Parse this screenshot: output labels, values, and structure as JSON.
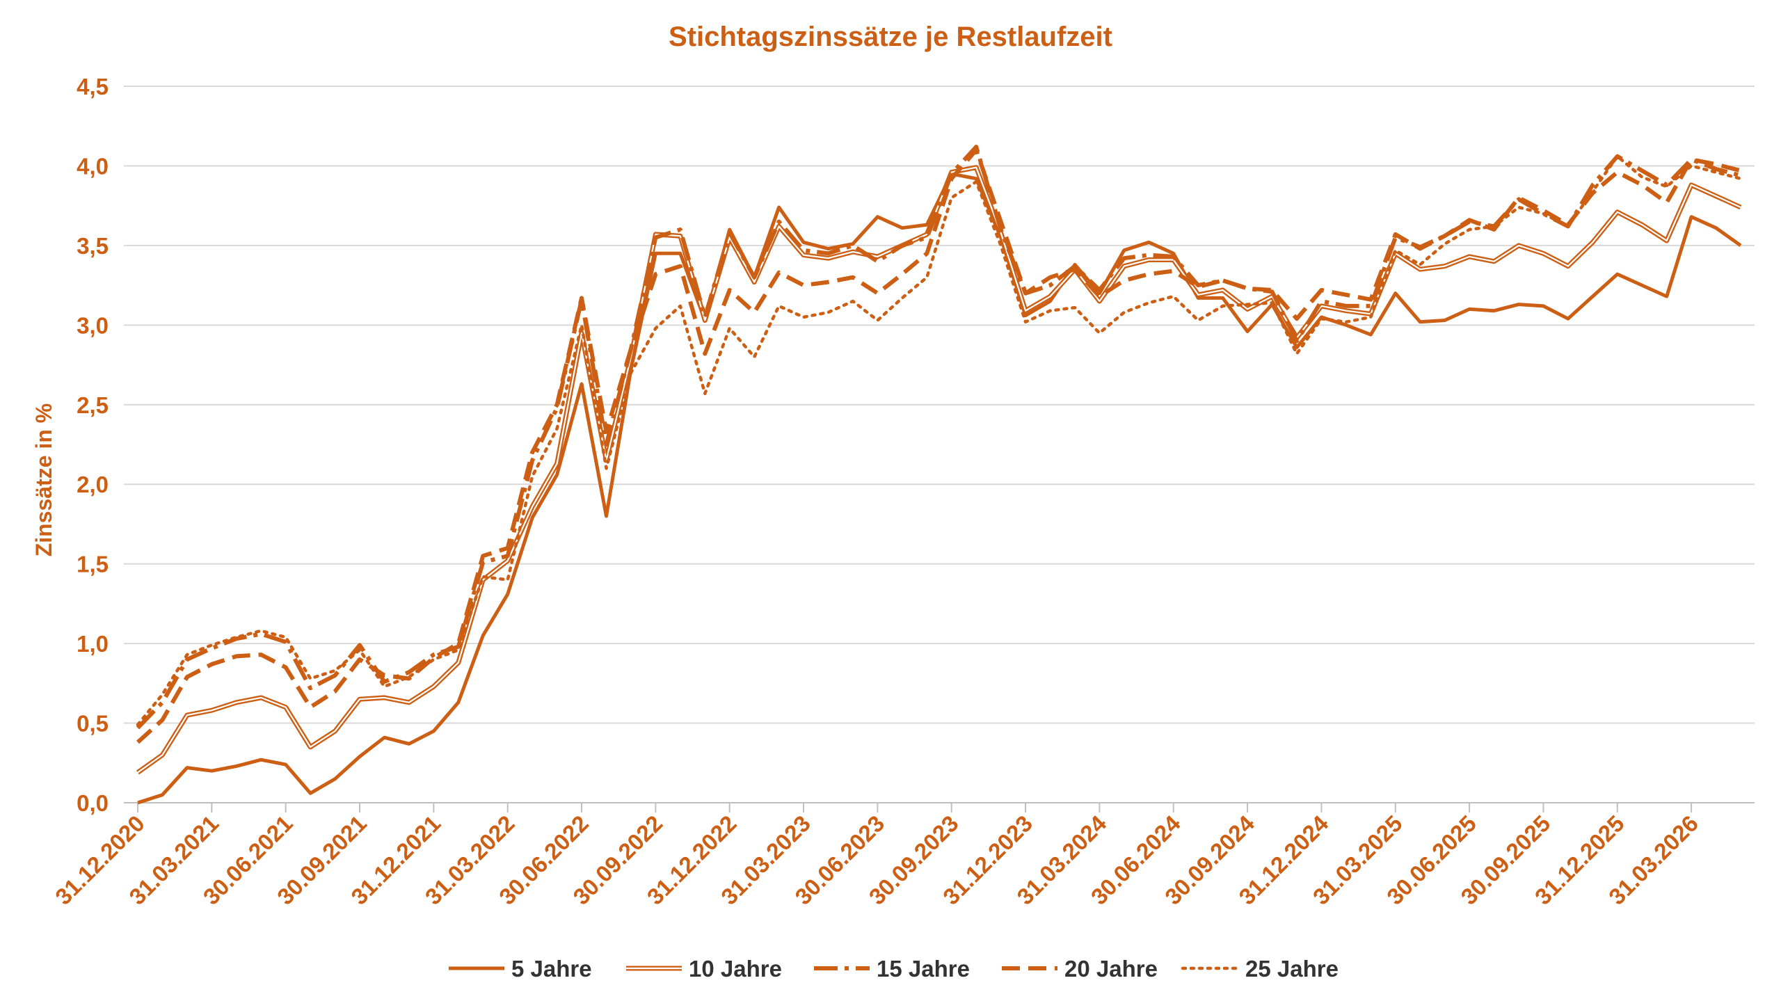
{
  "chart_data": {
    "type": "line",
    "title": "Stichtagszinssätze je Restlaufzeit",
    "xlabel": "",
    "ylabel": "Zinssätze in %",
    "ylim": [
      0,
      4.5
    ],
    "yticks": [
      "0,0",
      "0,5",
      "1,0",
      "1,5",
      "2,0",
      "2,5",
      "3,0",
      "3,5",
      "4,0",
      "4,5"
    ],
    "xtick_labels": [
      "31.12.2020",
      "31.03.2021",
      "30.06.2021",
      "30.09.2021",
      "31.12.2021",
      "31.03.2022",
      "30.06.2022",
      "30.09.2022",
      "31.12.2022",
      "31.03.2023",
      "30.06.2023",
      "30.09.2023",
      "31.12.2023",
      "31.03.2024",
      "30.06.2024",
      "30.09.2024",
      "31.12.2024",
      "31.03.2025",
      "30.06.2025",
      "30.09.2025",
      "31.12.2025",
      "31.03.2026"
    ],
    "x_count": 66,
    "grid": true,
    "legend_position": "bottom",
    "color": "#CC5F14",
    "series": [
      {
        "name": "5 Jahre",
        "style": "solid",
        "values": [
          0.0,
          0.05,
          0.22,
          0.2,
          0.23,
          0.27,
          0.24,
          0.06,
          0.15,
          0.29,
          0.41,
          0.37,
          0.45,
          0.63,
          1.05,
          1.31,
          1.79,
          2.06,
          2.63,
          1.8,
          2.72,
          3.45,
          3.45,
          3.03,
          3.6,
          3.3,
          3.74,
          3.52,
          3.48,
          3.51,
          3.68,
          3.61,
          3.63,
          3.95,
          3.92,
          3.55,
          3.06,
          3.15,
          3.38,
          3.2,
          3.47,
          3.52,
          3.45,
          3.17,
          3.17,
          2.96,
          3.13,
          2.86,
          3.05,
          3.0,
          2.94,
          3.2,
          3.02,
          3.03,
          3.1,
          3.09,
          3.13,
          3.12,
          3.04,
          3.18,
          3.32,
          3.25,
          3.18,
          3.68,
          3.61,
          3.5
        ]
      },
      {
        "name": "10 Jahre",
        "style": "double",
        "values": [
          0.19,
          0.3,
          0.55,
          0.58,
          0.63,
          0.66,
          0.6,
          0.35,
          0.45,
          0.65,
          0.66,
          0.63,
          0.73,
          0.88,
          1.4,
          1.52,
          1.86,
          2.13,
          2.95,
          2.15,
          2.8,
          3.57,
          3.56,
          3.03,
          3.55,
          3.27,
          3.62,
          3.44,
          3.42,
          3.46,
          3.43,
          3.5,
          3.57,
          3.96,
          3.99,
          3.58,
          3.09,
          3.18,
          3.35,
          3.15,
          3.37,
          3.41,
          3.41,
          3.19,
          3.22,
          3.1,
          3.18,
          2.92,
          3.12,
          3.09,
          3.07,
          3.45,
          3.35,
          3.37,
          3.43,
          3.4,
          3.5,
          3.45,
          3.37,
          3.52,
          3.71,
          3.63,
          3.53,
          3.88,
          3.81,
          3.74
        ]
      },
      {
        "name": "15 Jahre",
        "style": "dashdot",
        "values": [
          0.47,
          0.63,
          0.9,
          0.97,
          1.03,
          1.06,
          1.01,
          0.72,
          0.8,
          0.99,
          0.76,
          0.82,
          0.93,
          0.98,
          1.51,
          1.55,
          2.15,
          2.48,
          3.16,
          2.25,
          2.85,
          3.55,
          3.6,
          3.05,
          3.58,
          3.3,
          3.65,
          3.47,
          3.45,
          3.5,
          3.4,
          3.5,
          3.55,
          3.95,
          4.12,
          3.6,
          3.2,
          3.25,
          3.37,
          3.22,
          3.42,
          3.44,
          3.43,
          3.25,
          3.28,
          3.23,
          3.21,
          2.9,
          3.15,
          3.12,
          3.12,
          3.55,
          3.49,
          3.56,
          3.65,
          3.62,
          3.79,
          3.7,
          3.62,
          3.88,
          4.06,
          3.97,
          3.88,
          4.04,
          3.98,
          3.94
        ]
      },
      {
        "name": "20 Jahre",
        "style": "dashed",
        "values": [
          0.38,
          0.52,
          0.79,
          0.87,
          0.92,
          0.93,
          0.85,
          0.6,
          0.7,
          0.9,
          0.8,
          0.78,
          0.91,
          1.0,
          1.55,
          1.6,
          2.2,
          2.5,
          3.17,
          2.33,
          2.85,
          3.32,
          3.37,
          2.82,
          3.22,
          3.08,
          3.33,
          3.25,
          3.27,
          3.3,
          3.2,
          3.32,
          3.45,
          3.92,
          4.1,
          3.65,
          3.2,
          3.3,
          3.35,
          3.18,
          3.28,
          3.32,
          3.34,
          3.24,
          3.28,
          3.23,
          3.22,
          3.04,
          3.22,
          3.19,
          3.16,
          3.57,
          3.48,
          3.56,
          3.66,
          3.6,
          3.8,
          3.72,
          3.63,
          3.83,
          3.96,
          3.88,
          3.77,
          4.04,
          4.01,
          3.97
        ]
      },
      {
        "name": "25 Jahre",
        "style": "dotted",
        "values": [
          0.49,
          0.68,
          0.93,
          0.99,
          1.04,
          1.08,
          1.04,
          0.78,
          0.83,
          0.96,
          0.73,
          0.79,
          0.9,
          0.96,
          1.42,
          1.4,
          2.05,
          2.35,
          3.0,
          2.1,
          2.7,
          2.98,
          3.12,
          2.57,
          2.98,
          2.8,
          3.12,
          3.05,
          3.08,
          3.15,
          3.03,
          3.17,
          3.3,
          3.8,
          3.9,
          3.5,
          3.02,
          3.09,
          3.11,
          2.95,
          3.08,
          3.14,
          3.18,
          3.03,
          3.12,
          3.13,
          3.14,
          2.82,
          3.04,
          3.02,
          3.05,
          3.47,
          3.38,
          3.51,
          3.6,
          3.62,
          3.74,
          3.7,
          3.62,
          3.84,
          4.06,
          3.93,
          3.87,
          4.0,
          3.96,
          3.92
        ]
      }
    ]
  }
}
